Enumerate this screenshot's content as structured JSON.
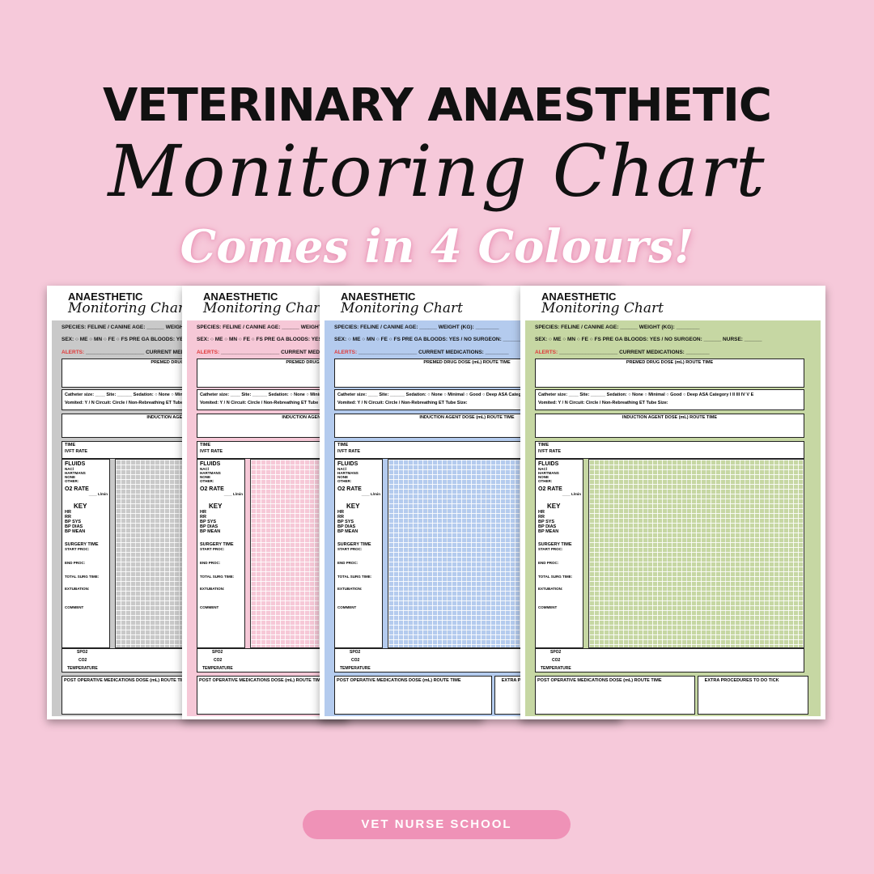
{
  "title_line1": "VETERINARY ANAESTHETIC",
  "title_line2": "Monitoring Chart",
  "title_line3": "Comes in 4 Colours!",
  "sheet": {
    "heading1": "ANAESTHETIC",
    "heading2": "Monitoring Chart",
    "species": "SPECIES: FELINE / CANINE   AGE:",
    "weight": "WEIGHT (KG):",
    "sex": "SEX: ○ ME ○ MN ○ FE ○ FS   PRE GA BLOODS: YES / NO",
    "surgeon": "SURGEON:",
    "nurse": "NURSE:",
    "alerts": "ALERTS:",
    "current_meds": "CURRENT MEDICATIONS:",
    "premed": "PREMED DRUG",
    "dose": "DOSE (mL)",
    "route": "ROUTE",
    "time": "TIME",
    "catheter": "Catheter size: ____  Site: ______",
    "sedation": "Sedation: ○ None ○ Minimal ○ Good ○ Deep",
    "asa": "ASA Category I II III IV V E",
    "vomited": "Vomited: Y / N",
    "circuit": "Circuit: Circle / Non-Rebreathing",
    "et_tube": "ET Tube Size:",
    "induction": "INDUCTION AGENT",
    "time_row": "TIME",
    "ivft": "IVFT RATE",
    "fluids": "FLUIDS",
    "fluid_opts": [
      "NACl",
      "HARTMANS",
      "NONE",
      "OTHER:"
    ],
    "o2": "O2 RATE",
    "lmin": "____ L/min",
    "key": "KEY",
    "key_items": [
      "HR",
      "RR",
      "BP SYS",
      "BP DIAS",
      "BP MEAN"
    ],
    "surgery_time": "SURGERY TIME",
    "start": "START PROC:",
    "end": "END PROC:",
    "total": "TOTAL SURG TIME:",
    "extubation": "EXTUBATION:",
    "comment": "COMMENT",
    "spo2": "SPO2",
    "co2": "CO2",
    "temperature": "TEMPERATURE",
    "post_op": "POST OPERATIVE MEDICATIONS",
    "extra": "EXTRA PROCEDURES TO DO",
    "tick": "TICK"
  },
  "sheets": [
    {
      "name": "grey",
      "color": "#c9c9c9"
    },
    {
      "name": "pink",
      "color": "#f6c8d7"
    },
    {
      "name": "blue",
      "color": "#b4cbee"
    },
    {
      "name": "green",
      "color": "#c6d7a3"
    }
  ],
  "brand_button": "VET NURSE SCHOOL"
}
